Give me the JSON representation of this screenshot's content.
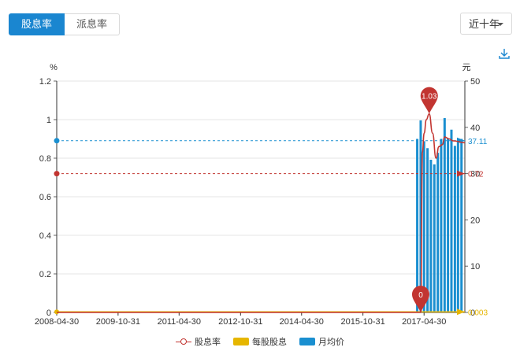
{
  "tabs": [
    {
      "label": "股息率",
      "active": true
    },
    {
      "label": "派息率",
      "active": false
    }
  ],
  "range": {
    "selected": "近十年"
  },
  "download_icon": "download-icon",
  "colors": {
    "yield": "#c23531",
    "dividend": "#e6b600",
    "price": "#1a8fd0",
    "accent": "#1a86d0"
  },
  "chart_data": {
    "type": "bar+line",
    "left_axis": {
      "unit": "%",
      "min": 0,
      "max": 1.2,
      "ticks": [
        "0",
        "0.2",
        "0.4",
        "0.6",
        "0.8",
        "1",
        "1.2"
      ]
    },
    "right_axis": {
      "unit": "元",
      "min": 0,
      "max": 50,
      "ticks": [
        "0",
        "10",
        "20",
        "30",
        "40",
        "50"
      ]
    },
    "x_ticks": [
      "2008-04-30",
      "2009-10-31",
      "2011-04-30",
      "2012-10-31",
      "2014-04-30",
      "2015-10-31",
      "2017-04-30"
    ],
    "x_range": [
      "2008-04-30",
      "2018-04-30"
    ],
    "grid": true,
    "legend_position": "bottom",
    "series": [
      {
        "name": "股息率",
        "kind": "line",
        "axis": "left",
        "points": [
          [
            "2008-04-30",
            0
          ],
          [
            "2009-04-30",
            0
          ],
          [
            "2010-04-30",
            0
          ],
          [
            "2011-04-30",
            0
          ],
          [
            "2012-04-30",
            0
          ],
          [
            "2013-04-30",
            0
          ],
          [
            "2014-04-30",
            0
          ],
          [
            "2015-04-30",
            0
          ],
          [
            "2016-04-30",
            0
          ],
          [
            "2017-01-31",
            0
          ],
          [
            "2017-03-31",
            0
          ],
          [
            "2017-04-15",
            0.83
          ],
          [
            "2017-05-01",
            0.93
          ],
          [
            "2017-05-20",
            1.0
          ],
          [
            "2017-06-15",
            1.03
          ],
          [
            "2017-07-15",
            0.93
          ],
          [
            "2017-08-15",
            0.8
          ],
          [
            "2017-09-10",
            0.86
          ],
          [
            "2017-10-10",
            0.87
          ],
          [
            "2017-11-01",
            0.91
          ],
          [
            "2017-12-10",
            0.9
          ],
          [
            "2018-01-15",
            0.89
          ],
          [
            "2018-04-30",
            0.88
          ]
        ],
        "marker_line_value": 0.72,
        "max_pin": {
          "label": "1.03",
          "date": "2017-06-15",
          "value": 1.03
        },
        "min_pin": {
          "label": "0",
          "date": "2017-03-31",
          "value": 0
        }
      },
      {
        "name": "每股股息",
        "kind": "line",
        "axis": "left",
        "points": [
          [
            "2008-04-30",
            0
          ],
          [
            "2018-04-30",
            0
          ]
        ],
        "marker_line_value": 0.003,
        "end_label": "0.003"
      },
      {
        "name": "月均价",
        "kind": "bar",
        "axis": "right",
        "avg_line_value": 37.11,
        "avg_label": "37.11",
        "bars": [
          [
            "2017-02-28",
            37.5
          ],
          [
            "2017-03-31",
            41.5
          ],
          [
            "2017-04-30",
            37.0
          ],
          [
            "2017-05-31",
            35.5
          ],
          [
            "2017-06-30",
            33.0
          ],
          [
            "2017-07-31",
            32.0
          ],
          [
            "2017-08-31",
            34.5
          ],
          [
            "2017-09-30",
            37.5
          ],
          [
            "2017-10-31",
            42.0
          ],
          [
            "2017-11-30",
            37.5
          ],
          [
            "2017-12-31",
            39.5
          ],
          [
            "2018-01-31",
            36.0
          ],
          [
            "2018-02-28",
            37.0
          ],
          [
            "2018-03-31",
            37.5
          ]
        ]
      }
    ],
    "yield_marker_label": "0.72"
  }
}
